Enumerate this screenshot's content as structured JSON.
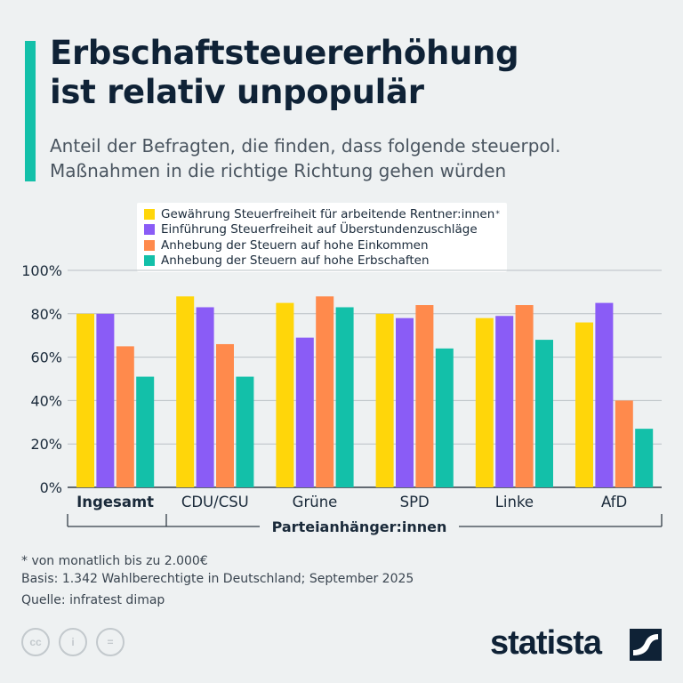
{
  "header": {
    "title_line1": "Erbschaftsteuererhöhung",
    "title_line2": "ist relativ unpopulär",
    "subtitle_line1": "Anteil der Befragten, die finden, dass folgende steuerpol.",
    "subtitle_line2": "Maßnahmen in die richtige Richtung gehen würden"
  },
  "chart_data": {
    "type": "bar",
    "categories": [
      "Ingesamt",
      "CDU/CSU",
      "Grüne",
      "SPD",
      "Linke",
      "AfD"
    ],
    "group_label": "Parteianhänger:innen",
    "y_ticks": [
      "0%",
      "20%",
      "40%",
      "60%",
      "80%",
      "100%"
    ],
    "ylim": [
      0,
      100
    ],
    "grid": true,
    "legend_position": "top",
    "series": [
      {
        "name": "Gewährung Steuerfreiheit für arbeitende Rentner:innen",
        "name_suffix": "*",
        "color": "#ffd60a",
        "values": [
          80,
          88,
          85,
          80,
          78,
          76
        ]
      },
      {
        "name": "Einführung Steuerfreiheit auf Überstundenzuschläge",
        "color": "#8a5cf6",
        "values": [
          80,
          83,
          69,
          78,
          79,
          85
        ]
      },
      {
        "name": "Anhebung der Steuern auf hohe Einkommen",
        "color": "#ff8a4c",
        "values": [
          65,
          66,
          88,
          84,
          84,
          40
        ]
      },
      {
        "name": "Anhebung der Steuern auf hohe Erbschaften",
        "color": "#13c0a9",
        "values": [
          51,
          51,
          83,
          64,
          68,
          27
        ]
      }
    ]
  },
  "footer": {
    "note": "* von monatlich bis zu 2.000€",
    "basis": "Basis: 1.342 Wahlberechtigte in Deutschland; September 2025",
    "source": "Quelle: infratest dimap",
    "cc_icons": [
      "cc",
      "i",
      "="
    ],
    "brand": "statista"
  }
}
